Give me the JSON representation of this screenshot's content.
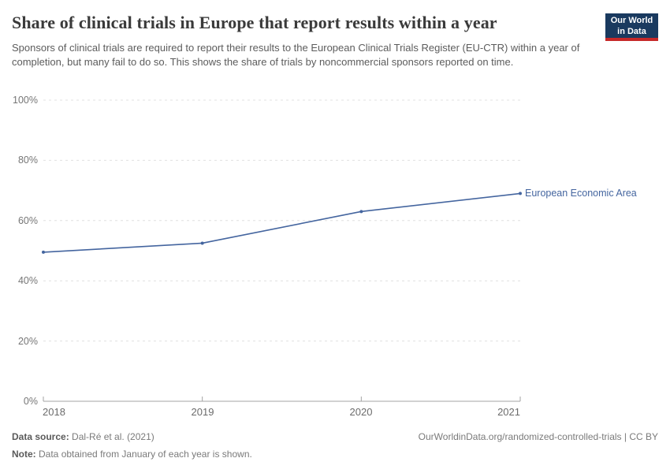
{
  "header": {
    "title": "Share of clinical trials in Europe that report results within a year",
    "subtitle": "Sponsors of clinical trials are required to report their results to the European Clinical Trials Register (EU-CTR) within a year of completion, but many fail to do so. This shows the share of trials by noncommercial sponsors reported on time.",
    "logo": {
      "line1": "Our World",
      "line2": "in Data",
      "bg_color": "#1a3a5f",
      "accent_color": "#c62828"
    }
  },
  "chart_data": {
    "type": "line",
    "title": "Share of clinical trials in Europe that report results within a year",
    "x": [
      2018,
      2019,
      2020,
      2021
    ],
    "series": [
      {
        "name": "European Economic Area",
        "values": [
          49.5,
          52.5,
          63,
          69
        ],
        "color": "#44659f"
      }
    ],
    "xlabel": "",
    "ylabel": "",
    "ylim": [
      0,
      100
    ],
    "grid": "horizontal dashed",
    "legend_position": "right of line end"
  },
  "axes": {
    "y_ticks": [
      "100%",
      "80%",
      "60%",
      "40%",
      "20%",
      "0%"
    ],
    "x_ticks": [
      "2018",
      "2019",
      "2020",
      "2021"
    ]
  },
  "footer": {
    "source_label": "Data source:",
    "source_value": " Dal-Ré et al. (2021)",
    "note_label": "Note:",
    "note_value": " Data obtained from January of each year is shown.",
    "link": "OurWorldinData.org/randomized-controlled-trials | CC BY"
  }
}
